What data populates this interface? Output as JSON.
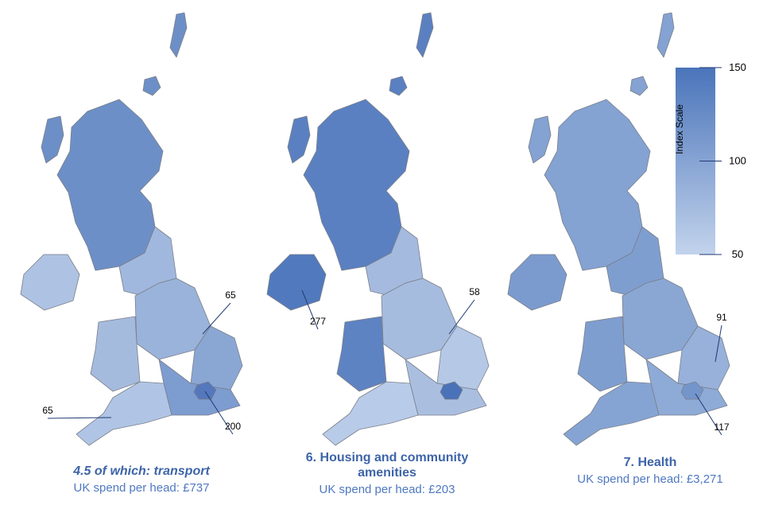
{
  "maps": [
    {
      "title": "4.5 of which: transport",
      "subtitle": "UK spend per head: £737",
      "callouts": [
        65,
        65,
        200
      ]
    },
    {
      "title": "6. Housing and community amenities",
      "subtitle": "UK spend per head: £203",
      "callouts": [
        277,
        58
      ]
    },
    {
      "title": "7. Health",
      "subtitle": "UK spend per head: £3,271",
      "callouts": [
        91,
        117
      ]
    }
  ],
  "scale": {
    "label": "Index Scale",
    "ticks": [
      150,
      100,
      50
    ]
  }
}
